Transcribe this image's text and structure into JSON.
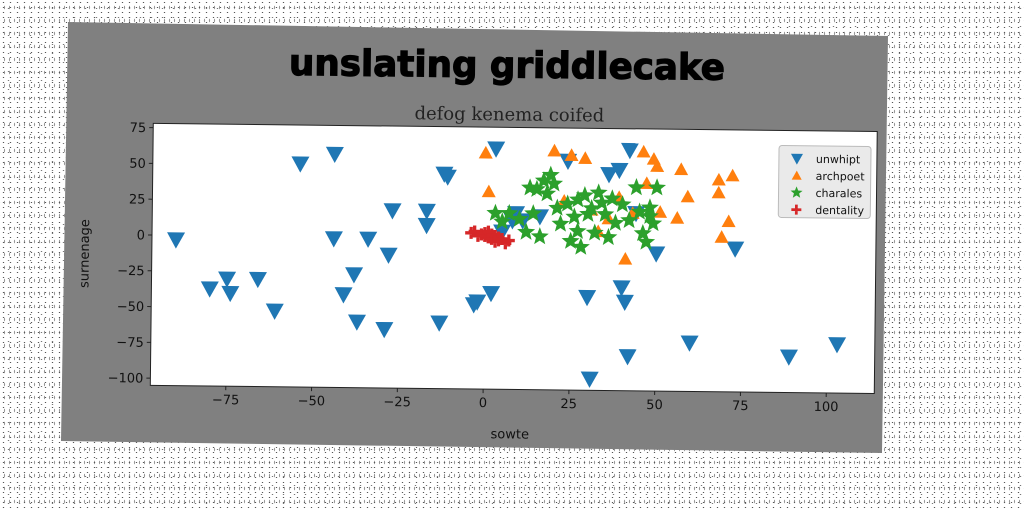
{
  "chart_data": {
    "type": "scatter",
    "title": "unslating griddlecake",
    "subtitle": "defog kenema coifed",
    "xlabel": "sowte",
    "ylabel": "surnenage",
    "xlim": [
      -97,
      114
    ],
    "ylim": [
      -105,
      78
    ],
    "xticks": [
      -75,
      -50,
      -25,
      0,
      25,
      50,
      75,
      100
    ],
    "yticks": [
      -100,
      -75,
      -50,
      -25,
      0,
      25,
      50,
      75
    ],
    "xtick_labels": [
      "−75",
      "−50",
      "−25",
      "0",
      "25",
      "50",
      "75",
      "100"
    ],
    "ytick_labels": [
      "−100",
      "−75",
      "−50",
      "−25",
      "0",
      "25",
      "50",
      "75"
    ],
    "grid": false,
    "legend_position": "top-right",
    "colors": {
      "figure_background": "#808080",
      "axes_background": "#ffffff",
      "unwhipt": "#1f77b4",
      "archpoet": "#ff7f0e",
      "charales": "#2ca02c",
      "dentality": "#d62728"
    },
    "series": [
      {
        "name": "unwhipt",
        "marker": "triangle-down",
        "color": "#1f77b4",
        "points": [
          [
            -90,
            -3
          ],
          [
            -80,
            -37
          ],
          [
            -75,
            -30
          ],
          [
            -74,
            -40
          ],
          [
            -66,
            -30
          ],
          [
            -61,
            -52
          ],
          [
            -54,
            51
          ],
          [
            -44,
            58
          ],
          [
            -44,
            -1
          ],
          [
            -41,
            -40
          ],
          [
            -38,
            -26
          ],
          [
            -37,
            -59
          ],
          [
            -34,
            -1
          ],
          [
            -29,
            -64
          ],
          [
            -28,
            -12
          ],
          [
            -27,
            19
          ],
          [
            -17,
            19
          ],
          [
            -17,
            9
          ],
          [
            -13,
            -59
          ],
          [
            -12,
            45
          ],
          [
            -11,
            43
          ],
          [
            -3,
            -46
          ],
          [
            -2,
            -44
          ],
          [
            2,
            -38
          ],
          [
            3,
            63
          ],
          [
            5,
            5
          ],
          [
            8,
            13
          ],
          [
            9,
            18
          ],
          [
            11,
            13
          ],
          [
            16,
            16
          ],
          [
            24,
            55
          ],
          [
            30,
            -40
          ],
          [
            31,
            -97
          ],
          [
            36,
            46
          ],
          [
            39,
            49
          ],
          [
            40,
            -33
          ],
          [
            41,
            -43
          ],
          [
            42,
            63
          ],
          [
            42,
            -81
          ],
          [
            44,
            19
          ],
          [
            50,
            -9
          ],
          [
            60,
            -71
          ],
          [
            73,
            -5
          ],
          [
            89,
            -80
          ],
          [
            103,
            -71
          ]
        ]
      },
      {
        "name": "archpoet",
        "marker": "triangle-up",
        "color": "#ff7f0e",
        "points": [
          [
            0,
            60
          ],
          [
            1,
            33
          ],
          [
            20,
            62
          ],
          [
            23,
            27
          ],
          [
            25,
            59
          ],
          [
            29,
            57
          ],
          [
            31,
            21
          ],
          [
            33,
            6
          ],
          [
            36,
            15
          ],
          [
            39,
            30
          ],
          [
            41,
            -13
          ],
          [
            43,
            19
          ],
          [
            46,
            62
          ],
          [
            47,
            40
          ],
          [
            49,
            57
          ],
          [
            50,
            52
          ],
          [
            51,
            20
          ],
          [
            56,
            16
          ],
          [
            57,
            50
          ],
          [
            59,
            31
          ],
          [
            68,
            34
          ],
          [
            68,
            43
          ],
          [
            69,
            3
          ],
          [
            71,
            14
          ],
          [
            72,
            46
          ]
        ]
      },
      {
        "name": "charales",
        "marker": "star",
        "color": "#2ca02c",
        "points": [
          [
            3,
            18
          ],
          [
            5,
            12
          ],
          [
            7,
            18
          ],
          [
            10,
            14
          ],
          [
            12,
            5
          ],
          [
            13,
            36
          ],
          [
            14,
            18
          ],
          [
            15,
            35
          ],
          [
            16,
            2
          ],
          [
            17,
            41
          ],
          [
            18,
            32
          ],
          [
            19,
            45
          ],
          [
            20,
            39
          ],
          [
            21,
            22
          ],
          [
            22,
            11
          ],
          [
            24,
            25
          ],
          [
            25,
            -1
          ],
          [
            26,
            16
          ],
          [
            27,
            28
          ],
          [
            27,
            6
          ],
          [
            28,
            -5
          ],
          [
            29,
            31
          ],
          [
            30,
            18
          ],
          [
            31,
            22
          ],
          [
            32,
            5
          ],
          [
            33,
            33
          ],
          [
            34,
            26
          ],
          [
            35,
            18
          ],
          [
            36,
            2
          ],
          [
            37,
            29
          ],
          [
            38,
            12
          ],
          [
            40,
            25
          ],
          [
            42,
            14
          ],
          [
            44,
            37
          ],
          [
            45,
            20
          ],
          [
            46,
            5
          ],
          [
            47,
            -1
          ],
          [
            48,
            17
          ],
          [
            48,
            23
          ],
          [
            49,
            12
          ],
          [
            50,
            37
          ]
        ]
      },
      {
        "name": "dentality",
        "marker": "plus",
        "color": "#d62728",
        "points": [
          [
            -4,
            4
          ],
          [
            -3,
            5
          ],
          [
            -1,
            3
          ],
          [
            0,
            2
          ],
          [
            0,
            4
          ],
          [
            1,
            1
          ],
          [
            2,
            3
          ],
          [
            2,
            0
          ],
          [
            3,
            2
          ],
          [
            4,
            -1
          ],
          [
            4,
            1
          ],
          [
            5,
            0
          ],
          [
            6,
            -3
          ],
          [
            7,
            -1
          ],
          [
            -2,
            2
          ],
          [
            1,
            5
          ],
          [
            3,
            -2
          ]
        ]
      }
    ]
  }
}
